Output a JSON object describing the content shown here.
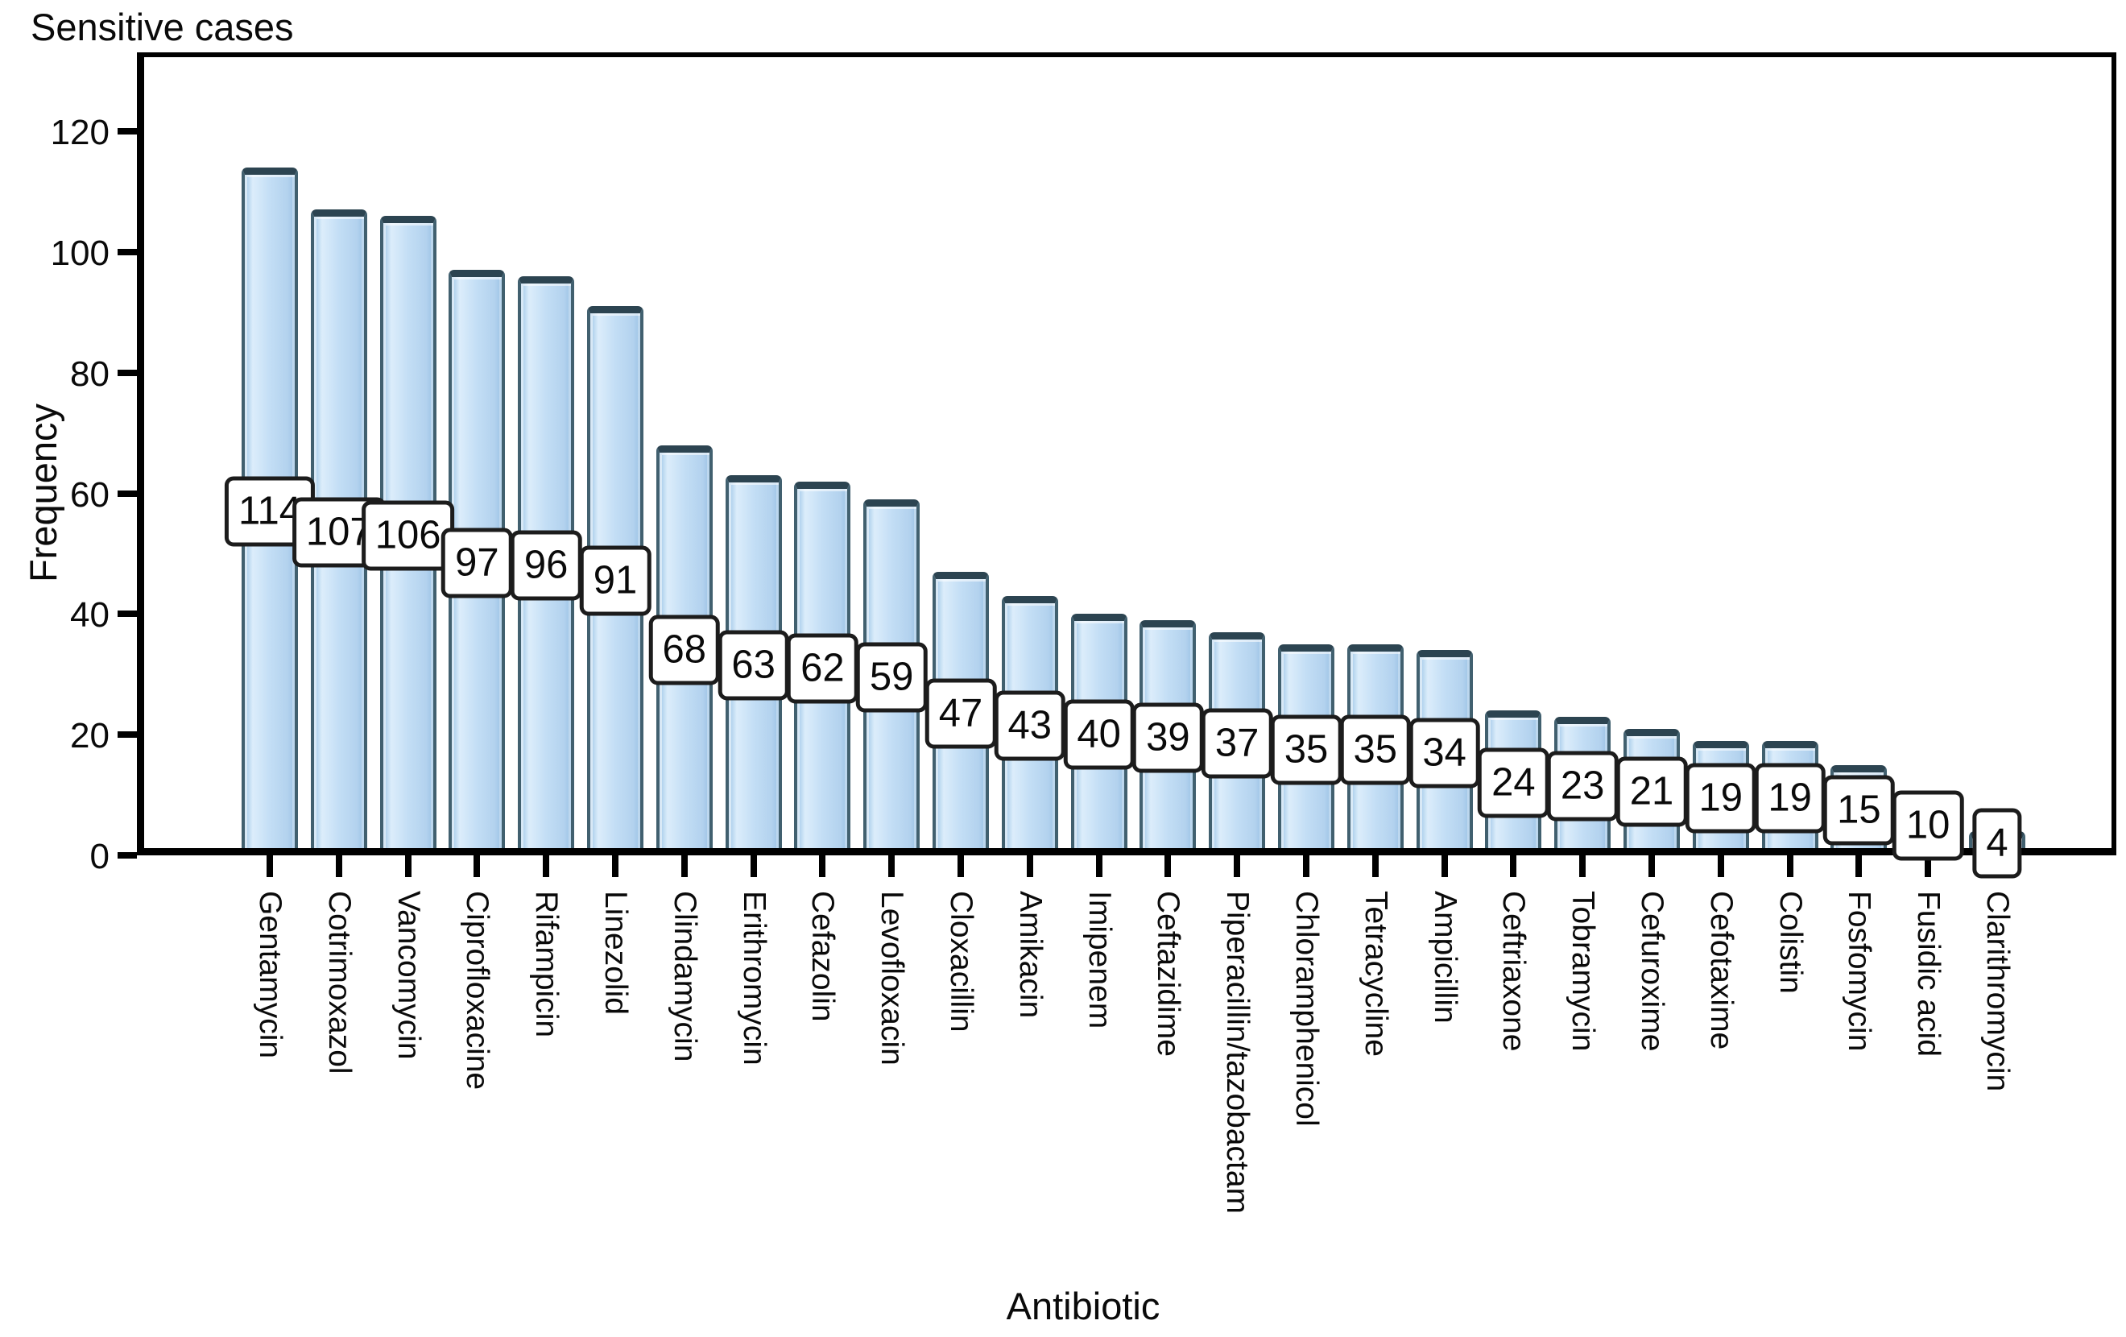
{
  "figure": {
    "title": "Sensitive cases",
    "xlabel": "Antibiotic",
    "ylabel": "Frequency"
  },
  "chart_data": {
    "type": "bar",
    "title": "Sensitive cases",
    "xlabel": "Antibiotic",
    "ylabel": "Frequency",
    "ylim": [
      0,
      133
    ],
    "yticks": [
      0,
      20,
      40,
      60,
      80,
      100,
      120
    ],
    "grid": false,
    "legend": null,
    "bar_fill": "#c3def5",
    "bar_edge": "#41606f",
    "bar_cap": "#2c4451",
    "value_box_bg": "#ffffff",
    "value_box_border": "#1c1c1c",
    "categories": [
      "Gentamycin",
      "Cotrimoxazol",
      "Vancomycin",
      "Ciprofloxacine",
      "Rifampicin",
      "Linezolid",
      "Clindamycin",
      "Erithromycin",
      "Cefazolin",
      "Levofloxacin",
      "Cloxacillin",
      "Amikacin",
      "Imipenem",
      "Ceftazidime",
      "Piperacillin/tazobactam",
      "Chloramphenicol",
      "Tetracycline",
      "Ampicillin",
      "Ceftriaxone",
      "Tobramycin",
      "Cefuroxime",
      "Cefotaxime",
      "Colistin",
      "Fosfomycin",
      "Fusidic acid",
      "Clarithromycin"
    ],
    "values": [
      114,
      107,
      106,
      97,
      96,
      91,
      68,
      63,
      62,
      59,
      47,
      43,
      40,
      39,
      37,
      35,
      35,
      34,
      24,
      23,
      21,
      19,
      19,
      15,
      10,
      4
    ]
  }
}
